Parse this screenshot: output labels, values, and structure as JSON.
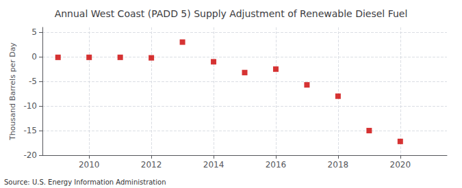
{
  "chart_data": {
    "type": "scatter",
    "title": "Annual West Coast (PADD 5) Supply Adjustment of Renewable Diesel Fuel",
    "ylabel": "Thousand Barrels per Day",
    "source": "Source: U.S. Energy Information Administration",
    "x": [
      2009,
      2010,
      2011,
      2012,
      2013,
      2014,
      2015,
      2016,
      2017,
      2018,
      2019,
      2020
    ],
    "values": [
      -0.1,
      -0.1,
      -0.1,
      -0.2,
      3.0,
      -1.0,
      -3.2,
      -2.5,
      -5.7,
      -8.0,
      -15.0,
      -17.2
    ],
    "color": "#cc0000",
    "marker": "square",
    "xlim": [
      2008.5,
      2021.5
    ],
    "xticks": [
      2010,
      2012,
      2014,
      2016,
      2018,
      2020
    ],
    "ylim": [
      -20,
      6
    ],
    "yticks": [
      -20,
      -15,
      -10,
      -5,
      0,
      5
    ],
    "grid": true
  }
}
